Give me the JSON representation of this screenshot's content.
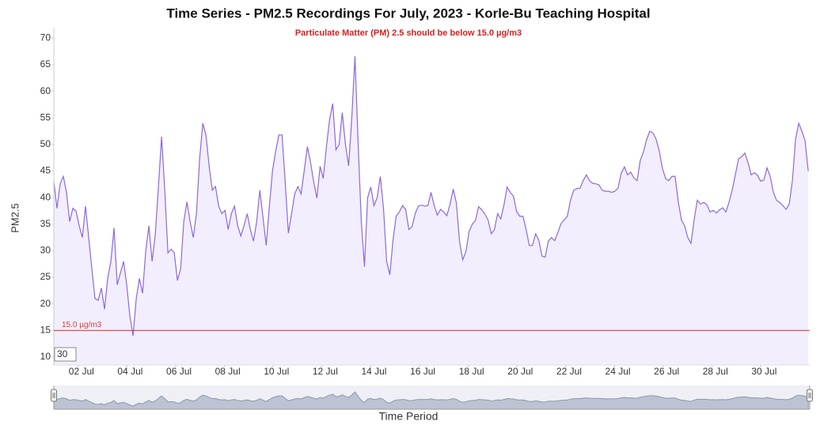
{
  "chart_data": {
    "type": "line",
    "title": "Time Series - PM2.5 Recordings For July, 2023 - Korle-Bu Teaching Hospital",
    "subtitle": "Particulate Matter (PM) 2.5 should be below 15.0 µg/m3",
    "y_label": "PM2.5",
    "x_label": "Time Period",
    "x": [
      1,
      1.13,
      1.26,
      1.39,
      1.52,
      1.65,
      1.78,
      1.91,
      2.04,
      2.17,
      2.3,
      2.43,
      2.56,
      2.69,
      2.82,
      2.95,
      3.08,
      3.21,
      3.34,
      3.47,
      3.6,
      3.73,
      3.86,
      3.99,
      4.12,
      4.25,
      4.38,
      4.51,
      4.64,
      4.77,
      4.9,
      5.03,
      5.16,
      5.29,
      5.42,
      5.55,
      5.68,
      5.81,
      5.94,
      6.07,
      6.2,
      6.33,
      6.46,
      6.59,
      6.72,
      6.85,
      6.98,
      7.11,
      7.24,
      7.37,
      7.5,
      7.63,
      7.76,
      7.89,
      8.02,
      8.15,
      8.28,
      8.41,
      8.54,
      8.67,
      8.8,
      8.93,
      9.06,
      9.19,
      9.32,
      9.45,
      9.58,
      9.71,
      9.84,
      9.97,
      10.1,
      10.23,
      10.36,
      10.49,
      10.62,
      10.75,
      10.88,
      11.01,
      11.14,
      11.27,
      11.4,
      11.53,
      11.66,
      11.79,
      11.92,
      12.05,
      12.18,
      12.31,
      12.44,
      12.57,
      12.7,
      12.83,
      12.96,
      13.09,
      13.22,
      13.35,
      13.48,
      13.61,
      13.74,
      13.87,
      14,
      14.13,
      14.26,
      14.39,
      14.52,
      14.65,
      14.78,
      14.91,
      15.04,
      15.17,
      15.3,
      15.43,
      15.56,
      15.69,
      15.82,
      15.95,
      16.08,
      16.21,
      16.34,
      16.47,
      16.6,
      16.73,
      16.86,
      16.99,
      17.12,
      17.25,
      17.38,
      17.51,
      17.64,
      17.77,
      17.9,
      18.03,
      18.16,
      18.29,
      18.42,
      18.55,
      18.68,
      18.81,
      18.94,
      19.07,
      19.2,
      19.33,
      19.46,
      19.59,
      19.72,
      19.85,
      19.98,
      20.11,
      20.24,
      20.37,
      20.5,
      20.63,
      20.76,
      20.89,
      21.02,
      21.15,
      21.28,
      21.41,
      21.54,
      21.67,
      21.8,
      21.93,
      22.06,
      22.19,
      22.32,
      22.45,
      22.58,
      22.71,
      22.84,
      22.97,
      23.1,
      23.23,
      23.36,
      23.49,
      23.62,
      23.75,
      23.88,
      24.01,
      24.14,
      24.27,
      24.4,
      24.53,
      24.66,
      24.79,
      24.92,
      25.05,
      25.18,
      25.31,
      25.44,
      25.57,
      25.7,
      25.83,
      25.96,
      26.09,
      26.22,
      26.35,
      26.48,
      26.61,
      26.74,
      26.87,
      27,
      27.13,
      27.26,
      27.39,
      27.52,
      27.65,
      27.78,
      27.91,
      28.04,
      28.17,
      28.3,
      28.43,
      28.56,
      28.69,
      28.82,
      28.95,
      29.08,
      29.21,
      29.34,
      29.47,
      29.6,
      29.73,
      29.86,
      29.99,
      30.12,
      30.25,
      30.38,
      30.51,
      30.64,
      30.77,
      30.9,
      31.03,
      31.16,
      31.29,
      31.42,
      31.55,
      31.68,
      31.81,
      31.94
    ],
    "series": [
      {
        "color": "#8d68dd",
        "fill": "#f2eefd",
        "values": [
          43,
          38,
          42.6,
          44,
          41,
          35.5,
          38,
          37.5,
          34.7,
          32.5,
          38.4,
          32.5,
          26.6,
          21,
          20.7,
          23,
          19,
          24.8,
          28,
          34.3,
          23.6,
          25.8,
          28,
          23.6,
          17.7,
          14,
          21,
          24.8,
          22,
          30,
          34.7,
          28,
          33,
          42,
          51.5,
          41.4,
          29.6,
          30.3,
          29.6,
          24.4,
          26.6,
          35.5,
          39.2,
          35.5,
          32.5,
          37,
          47.3,
          54,
          51.8,
          45.9,
          41.4,
          42.1,
          38.4,
          37,
          37.6,
          34,
          37,
          38.4,
          34.7,
          32.8,
          34.7,
          37,
          34,
          31.8,
          35.5,
          41.4,
          36.2,
          31,
          38.4,
          45.1,
          48.8,
          51.8,
          51.8,
          42.9,
          33.3,
          37,
          40.7,
          42.1,
          40.7,
          45.1,
          49.6,
          46.6,
          42.9,
          39.9,
          45.9,
          43.6,
          49.6,
          54.7,
          57.7,
          49,
          50,
          56,
          50,
          46,
          55,
          66.6,
          50.3,
          35.5,
          27,
          40,
          42,
          38.5,
          40,
          44,
          38,
          28,
          25.5,
          32,
          36.5,
          37.3,
          38.5,
          37.8,
          34,
          34.5,
          37,
          38.4,
          38.6,
          38.4,
          38.5,
          41,
          38.5,
          36.7,
          37.8,
          37.3,
          36.6,
          38.8,
          41.6,
          39,
          31.7,
          28.3,
          29.8,
          33.6,
          35,
          35.7,
          38.3,
          37.7,
          36.9,
          35.8,
          33.2,
          34,
          37,
          36,
          38.6,
          42,
          41,
          40.3,
          37.4,
          36.5,
          36.5,
          34,
          31,
          31,
          33.2,
          32,
          29,
          28.8,
          31.8,
          32.5,
          31.9,
          33.4,
          35.1,
          35.8,
          36.5,
          39.5,
          41.4,
          41.7,
          41.8,
          43.2,
          44.3,
          43.2,
          42.7,
          42.6,
          42.4,
          41.4,
          41.2,
          41.2,
          41,
          41.2,
          41.8,
          44.6,
          45.8,
          44.3,
          44.8,
          43.7,
          43.2,
          47,
          48.6,
          50.9,
          52.5,
          52.2,
          51,
          48.8,
          45.5,
          43.6,
          43.2,
          44,
          44,
          39.2,
          35.8,
          34.7,
          32.5,
          31.4,
          35.8,
          39.5,
          38.8,
          39.1,
          38.7,
          37.3,
          37.6,
          37.1,
          37.7,
          38.1,
          37.3,
          39.1,
          41.4,
          44.3,
          47.3,
          47.7,
          48.4,
          46.6,
          44.3,
          44.7,
          44.2,
          43.1,
          43.3,
          45.6,
          44,
          41,
          39.5,
          39.1,
          38.5,
          37.8,
          38.8,
          43.2,
          51,
          54,
          52.5,
          50.7,
          45
        ]
      }
    ],
    "xlim": [
      1,
      32
    ],
    "xticks": [
      {
        "value": 2,
        "label": "02 Jul"
      },
      {
        "value": 4,
        "label": "04 Jul"
      },
      {
        "value": 6,
        "label": "06 Jul"
      },
      {
        "value": 8,
        "label": "08 Jul"
      },
      {
        "value": 10,
        "label": "10 Jul"
      },
      {
        "value": 12,
        "label": "12 Jul"
      },
      {
        "value": 14,
        "label": "14 Jul"
      },
      {
        "value": 16,
        "label": "16 Jul"
      },
      {
        "value": 18,
        "label": "18 Jul"
      },
      {
        "value": 20,
        "label": "20 Jul"
      },
      {
        "value": 22,
        "label": "22 Jul"
      },
      {
        "value": 24,
        "label": "24 Jul"
      },
      {
        "value": 26,
        "label": "26 Jul"
      },
      {
        "value": 28,
        "label": "28 Jul"
      },
      {
        "value": 30,
        "label": "30 Jul"
      }
    ],
    "ylim": [
      8.5,
      72
    ],
    "yticks": [
      10,
      15,
      20,
      25,
      30,
      35,
      40,
      45,
      50,
      55,
      60,
      65,
      70
    ],
    "threshold": {
      "value": 15,
      "label": "15.0 µg/m3",
      "color": "#d9403a"
    },
    "rolling_period": 30,
    "navigator": true
  }
}
